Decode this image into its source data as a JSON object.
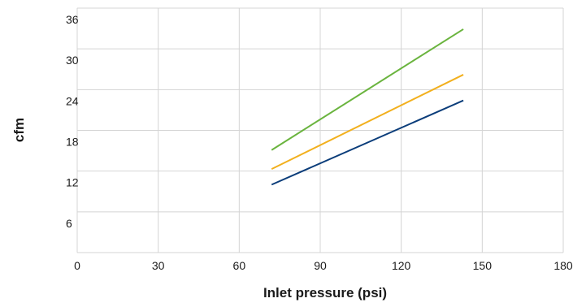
{
  "chart_data": {
    "type": "line",
    "xlabel": "Inlet pressure (psi)",
    "ylabel": "cfm",
    "xlim": [
      0,
      180
    ],
    "ylim": [
      0,
      36
    ],
    "xticks": [
      "0",
      "30",
      "60",
      "90",
      "120",
      "150",
      "180"
    ],
    "yticks": [
      "6",
      "12",
      "18",
      "24",
      "30",
      "36"
    ],
    "grid": true,
    "series": [
      {
        "color": "#6ab43e",
        "x": [
          72,
          143
        ],
        "y": [
          15.1,
          32.9
        ]
      },
      {
        "color": "#f2b01e",
        "x": [
          72,
          143
        ],
        "y": [
          12.3,
          26.2
        ]
      },
      {
        "color": "#0b3d7a",
        "x": [
          72,
          143
        ],
        "y": [
          10.0,
          22.4
        ]
      }
    ]
  }
}
